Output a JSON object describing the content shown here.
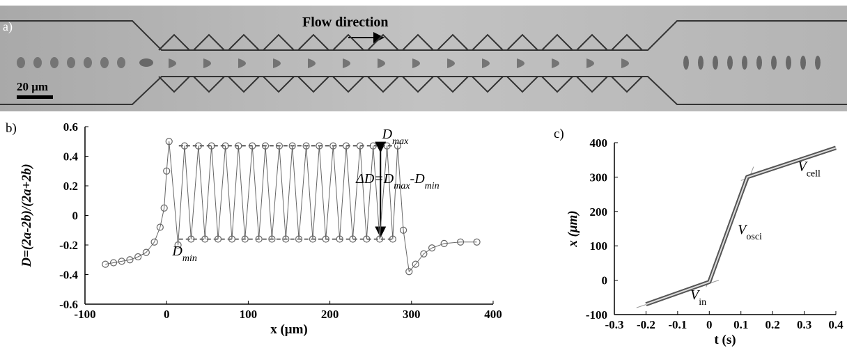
{
  "panel_a": {
    "label": "a)",
    "annotation": "Flow direction",
    "scale_bar": "20 μm"
  },
  "chart_data": [
    {
      "type": "line",
      "label": "b)",
      "x_label": "x (μm)",
      "y_label": "D=(2a-2b)/(2a+2b)",
      "markers": true,
      "x": [
        -75,
        -65,
        -55,
        -45,
        -35,
        -25,
        -15,
        -8,
        -3,
        0,
        3,
        14,
        22,
        30,
        39,
        47,
        55,
        63,
        72,
        80,
        88,
        96,
        105,
        113,
        121,
        129,
        138,
        146,
        154,
        162,
        171,
        179,
        187,
        195,
        204,
        212,
        220,
        228,
        237,
        245,
        253,
        261,
        270,
        277,
        283,
        290,
        297,
        305,
        315,
        325,
        340,
        360,
        380
      ],
      "series": [
        {
          "color": "#666666",
          "values": [
            -0.33,
            -0.32,
            -0.31,
            -0.3,
            -0.28,
            -0.25,
            -0.18,
            -0.08,
            0.05,
            0.3,
            0.5,
            -0.2,
            0.47,
            -0.16,
            0.47,
            -0.16,
            0.47,
            -0.16,
            0.47,
            -0.16,
            0.47,
            -0.16,
            0.47,
            -0.16,
            0.47,
            -0.16,
            0.47,
            -0.16,
            0.47,
            -0.16,
            0.47,
            -0.16,
            0.47,
            -0.16,
            0.47,
            -0.16,
            0.47,
            -0.16,
            0.47,
            -0.16,
            0.47,
            -0.16,
            0.47,
            -0.16,
            0.47,
            -0.1,
            -0.38,
            -0.33,
            -0.26,
            -0.22,
            -0.19,
            -0.18,
            -0.18
          ]
        }
      ],
      "xlim": [
        -100,
        400
      ],
      "xticks": [
        -100,
        0,
        100,
        200,
        300,
        400
      ],
      "ylim": [
        -0.6,
        0.6
      ],
      "yticks": [
        0.6,
        0.4,
        0.2,
        0,
        -0.2,
        -0.4,
        -0.6
      ],
      "reference_lines": [
        0.47,
        -0.16
      ],
      "annotations": [
        [
          "D",
          "max"
        ],
        [
          "ΔD=D",
          "max",
          "-D",
          "min"
        ],
        [
          "D",
          "min"
        ]
      ]
    },
    {
      "type": "line",
      "label": "c)",
      "x_label": "t (s)",
      "y_label": "x (μm)",
      "markers": false,
      "x": [
        -0.2,
        0,
        0.12,
        0.4
      ],
      "series": [
        {
          "color": "#555555",
          "values": [
            -70,
            -5,
            300,
            385
          ]
        }
      ],
      "fit_lines": [
        {
          "x": [
            -0.23,
            0.03
          ],
          "y": [
            -80,
            0
          ]
        },
        {
          "x": [
            -0.01,
            0.14
          ],
          "y": [
            -20,
            330
          ]
        },
        {
          "x": [
            0.1,
            0.4
          ],
          "y": [
            290,
            382
          ]
        }
      ],
      "xlim": [
        -0.3,
        0.4
      ],
      "xticks": [
        -0.3,
        -0.2,
        -0.1,
        0,
        0.1,
        0.2,
        0.3,
        0.4
      ],
      "ylim": [
        -100,
        400
      ],
      "yticks": [
        400,
        300,
        200,
        100,
        0,
        -100
      ],
      "annotations": [
        [
          "V",
          "cell"
        ],
        [
          "V",
          "osci"
        ],
        [
          "V",
          "in"
        ]
      ]
    }
  ]
}
